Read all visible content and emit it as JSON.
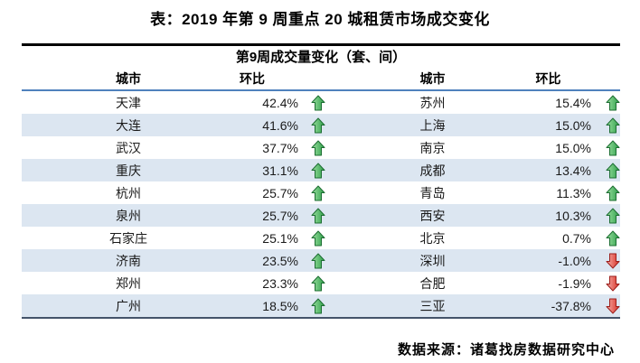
{
  "page_title": "表：2019 年第 9 周重点 20 城租赁市场成交变化",
  "source": "数据来源：诸葛找房数据研究中心",
  "colors": {
    "stripe": "#dce6f1",
    "header_rule": "#4f81bd",
    "top_rule": "#000000",
    "bottom_rule": "#44546a",
    "arrow_up": "#2fa04a",
    "arrow_down": "#d93025"
  },
  "icons": {
    "up": "arrow-up-icon",
    "down": "arrow-down-icon"
  },
  "chart_data": {
    "type": "table",
    "title": "第9周成交量变化（套、间）",
    "columns": [
      "城市",
      "环比",
      "城市",
      "环比"
    ],
    "rows": [
      {
        "city_l": "天津",
        "pct_l": "42.4%",
        "dir_l": "up",
        "city_r": "苏州",
        "pct_r": "15.4%",
        "dir_r": "up"
      },
      {
        "city_l": "大连",
        "pct_l": "41.6%",
        "dir_l": "up",
        "city_r": "上海",
        "pct_r": "15.0%",
        "dir_r": "up"
      },
      {
        "city_l": "武汉",
        "pct_l": "37.7%",
        "dir_l": "up",
        "city_r": "南京",
        "pct_r": "15.0%",
        "dir_r": "up"
      },
      {
        "city_l": "重庆",
        "pct_l": "31.1%",
        "dir_l": "up",
        "city_r": "成都",
        "pct_r": "13.4%",
        "dir_r": "up"
      },
      {
        "city_l": "杭州",
        "pct_l": "25.7%",
        "dir_l": "up",
        "city_r": "青岛",
        "pct_r": "11.3%",
        "dir_r": "up"
      },
      {
        "city_l": "泉州",
        "pct_l": "25.7%",
        "dir_l": "up",
        "city_r": "西安",
        "pct_r": "10.3%",
        "dir_r": "up"
      },
      {
        "city_l": "石家庄",
        "pct_l": "25.1%",
        "dir_l": "up",
        "city_r": "北京",
        "pct_r": "0.7%",
        "dir_r": "up"
      },
      {
        "city_l": "济南",
        "pct_l": "23.5%",
        "dir_l": "up",
        "city_r": "深圳",
        "pct_r": "-1.0%",
        "dir_r": "down"
      },
      {
        "city_l": "郑州",
        "pct_l": "23.3%",
        "dir_l": "up",
        "city_r": "合肥",
        "pct_r": "-1.9%",
        "dir_r": "down"
      },
      {
        "city_l": "广州",
        "pct_l": "18.5%",
        "dir_l": "up",
        "city_r": "三亚",
        "pct_r": "-37.8%",
        "dir_r": "down"
      }
    ]
  }
}
